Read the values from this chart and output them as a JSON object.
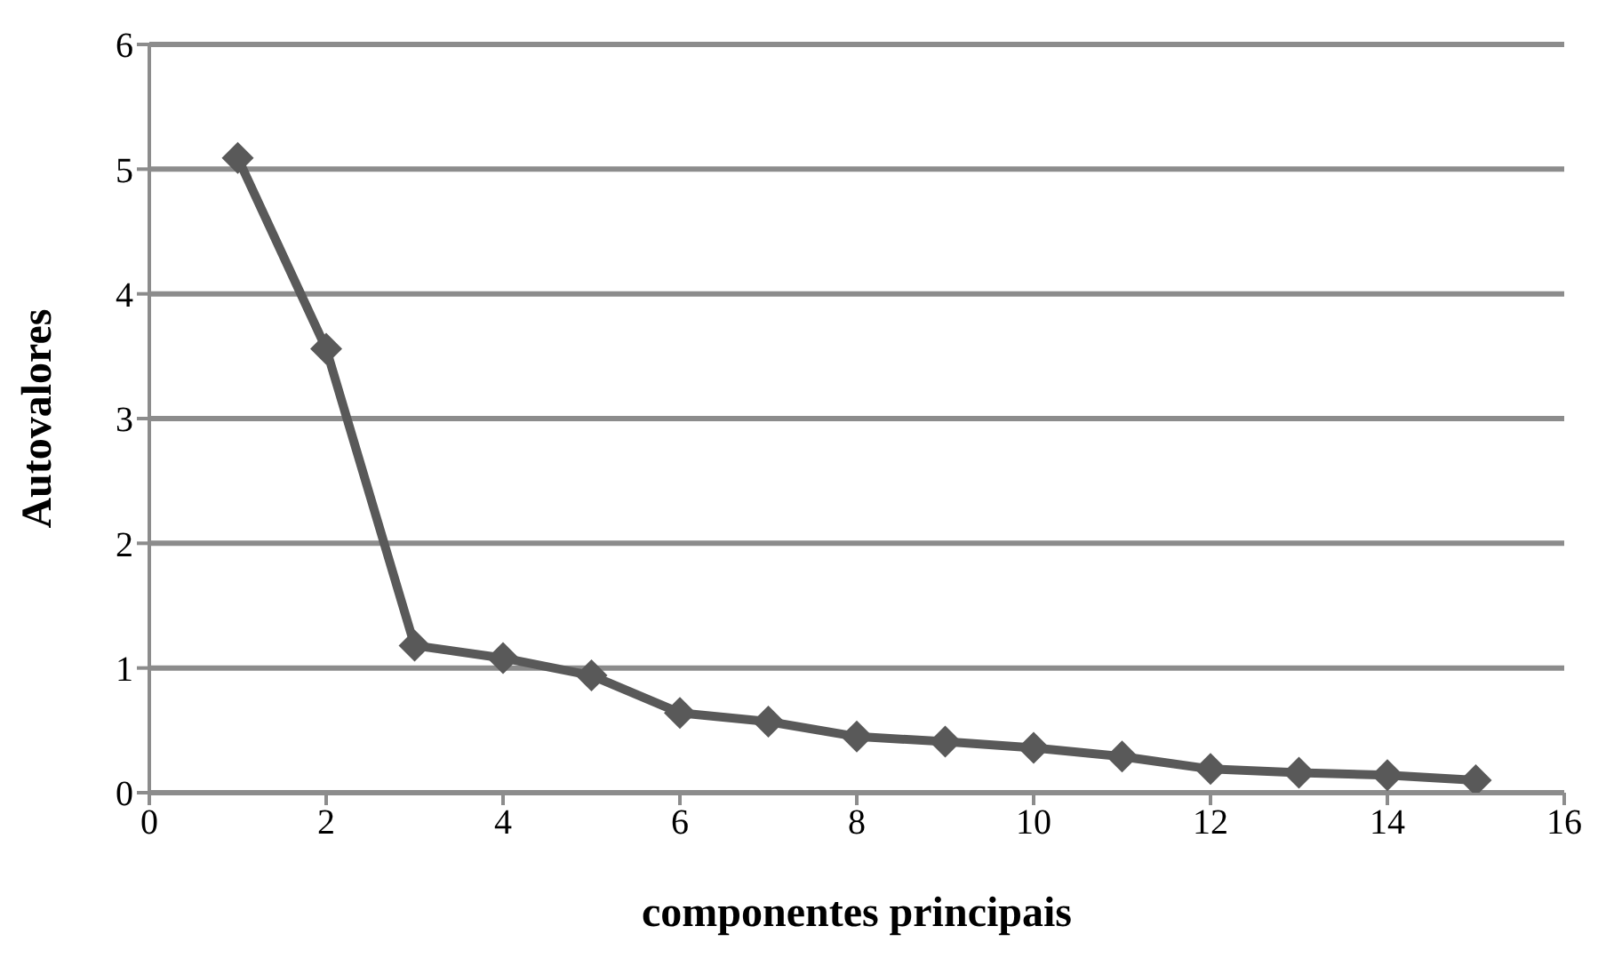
{
  "chart_data": {
    "type": "line",
    "xlabel": "componentes principais",
    "ylabel": "Autovalores",
    "x": [
      1,
      2,
      3,
      4,
      5,
      6,
      7,
      8,
      9,
      10,
      11,
      12,
      13,
      14,
      15
    ],
    "series": [
      {
        "color": "#595959",
        "values": [
          5.09,
          3.56,
          1.18,
          1.08,
          0.94,
          0.64,
          0.57,
          0.45,
          0.41,
          0.36,
          0.29,
          0.19,
          0.16,
          0.14,
          0.1
        ]
      }
    ],
    "xlim": [
      0,
      16
    ],
    "xticks": [
      0,
      2,
      4,
      6,
      8,
      10,
      12,
      14,
      16
    ],
    "ylim": [
      0,
      6
    ],
    "yticks": [
      0,
      1,
      2,
      3,
      4,
      5,
      6
    ],
    "grid": "y",
    "legend": false,
    "marker": "diamond",
    "line_style": "solid"
  }
}
